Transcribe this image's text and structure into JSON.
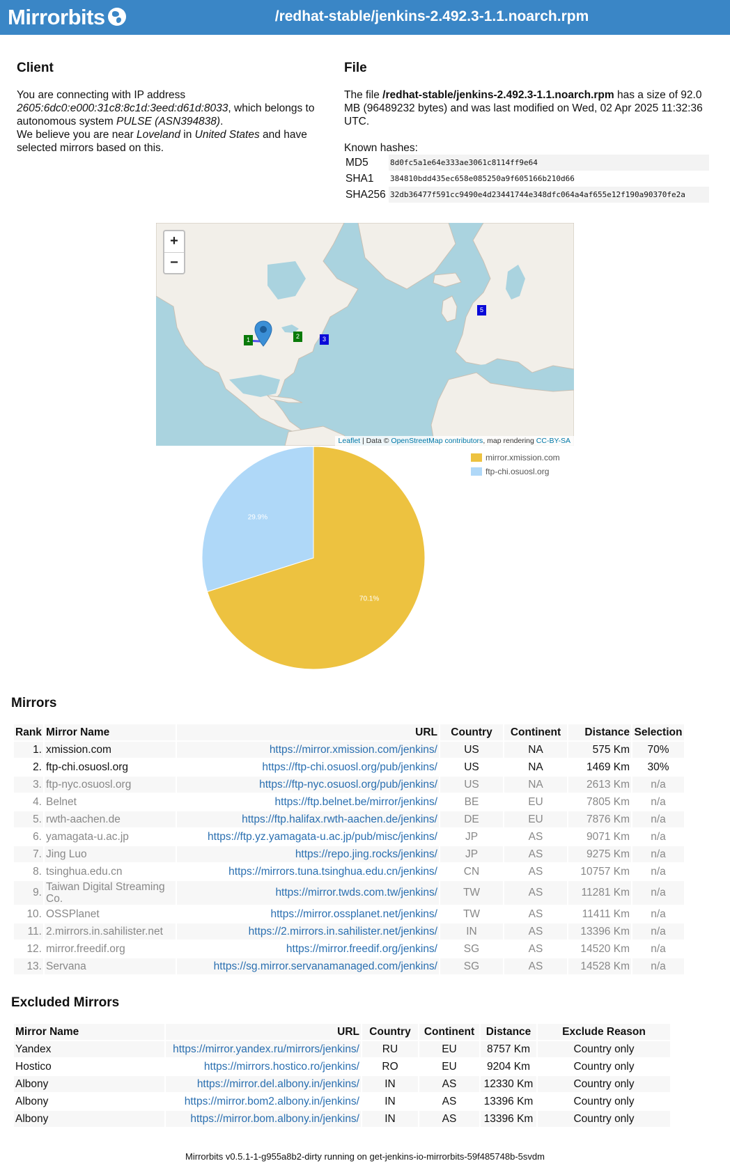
{
  "header": {
    "logo": "Mirrorbits",
    "path": "/redhat-stable/jenkins-2.492.3-1.1.noarch.rpm"
  },
  "client": {
    "title": "Client",
    "text_1": "You are connecting with IP address",
    "ip": "2605:6dc0:e000:31c8:8c1d:3eed:d61d:8033",
    "text_2": ", which belongs to autonomous system",
    "as_name": "PULSE (ASN394838)",
    "text_3": ".",
    "text_4": "We believe you are near",
    "city": "Loveland",
    "text_5": "in",
    "country": "United States",
    "text_6": "and have selected mirrors based on this."
  },
  "file": {
    "title": "File",
    "text_1": "The file",
    "path": "/redhat-stable/jenkins-2.492.3-1.1.noarch.rpm",
    "text_2": "has a size of 92.0 MB (96489232 bytes) and was last modified on Wed, 02 Apr 2025 11:32:36 UTC.",
    "hashes_label": "Known hashes:",
    "hashes": [
      {
        "name": "MD5",
        "value": "8d0fc5a1e64e333ae3061c8114ff9e64"
      },
      {
        "name": "SHA1",
        "value": "384810bdd435ec658e085250a9f605166b210d66"
      },
      {
        "name": "SHA256",
        "value": "32db36477f591cc9490e4d23441744e348dfc064a4af655e12f190a90370fe2a"
      }
    ]
  },
  "map": {
    "zoom_in": "+",
    "zoom_out": "−",
    "attribution_leaflet": "Leaflet",
    "attribution_data": "| Data ©",
    "attribution_osm": "OpenStreetMap contributors",
    "attribution_render": ", map rendering",
    "attribution_license": "CC-BY-SA",
    "markers": [
      "1",
      "2",
      "3",
      "5"
    ]
  },
  "chart_data": {
    "type": "pie",
    "labels": [
      "mirror.xmission.com",
      "ftp-chi.osuosl.org"
    ],
    "values": [
      70.1,
      29.9
    ],
    "value_labels": [
      "70.1%",
      "29.9%"
    ],
    "colors": [
      "#edc240",
      "#afd8f8"
    ],
    "legend": "top-right"
  },
  "mirrors": {
    "title": "Mirrors",
    "headers": [
      "Rank",
      "Mirror Name",
      "URL",
      "Country",
      "Continent",
      "Distance",
      "Selection"
    ],
    "rows": [
      {
        "rank": "1.",
        "name": "xmission.com",
        "url": "https://mirror.xmission.com/jenkins/",
        "country": "US",
        "continent": "NA",
        "distance": "575 Km",
        "selection": "70%"
      },
      {
        "rank": "2.",
        "name": "ftp-chi.osuosl.org",
        "url": "https://ftp-chi.osuosl.org/pub/jenkins/",
        "country": "US",
        "continent": "NA",
        "distance": "1469 Km",
        "selection": "30%"
      },
      {
        "rank": "3.",
        "name": "ftp-nyc.osuosl.org",
        "url": "https://ftp-nyc.osuosl.org/pub/jenkins/",
        "country": "US",
        "continent": "NA",
        "distance": "2613 Km",
        "selection": "n/a"
      },
      {
        "rank": "4.",
        "name": "Belnet",
        "url": "https://ftp.belnet.be/mirror/jenkins/",
        "country": "BE",
        "continent": "EU",
        "distance": "7805 Km",
        "selection": "n/a"
      },
      {
        "rank": "5.",
        "name": "rwth-aachen.de",
        "url": "https://ftp.halifax.rwth-aachen.de/jenkins/",
        "country": "DE",
        "continent": "EU",
        "distance": "7876 Km",
        "selection": "n/a"
      },
      {
        "rank": "6.",
        "name": "yamagata-u.ac.jp",
        "url": "https://ftp.yz.yamagata-u.ac.jp/pub/misc/jenkins/",
        "country": "JP",
        "continent": "AS",
        "distance": "9071 Km",
        "selection": "n/a"
      },
      {
        "rank": "7.",
        "name": "Jing Luo",
        "url": "https://repo.jing.rocks/jenkins/",
        "country": "JP",
        "continent": "AS",
        "distance": "9275 Km",
        "selection": "n/a"
      },
      {
        "rank": "8.",
        "name": "tsinghua.edu.cn",
        "url": "https://mirrors.tuna.tsinghua.edu.cn/jenkins/",
        "country": "CN",
        "continent": "AS",
        "distance": "10757 Km",
        "selection": "n/a"
      },
      {
        "rank": "9.",
        "name": "Taiwan Digital Streaming Co.",
        "url": "https://mirror.twds.com.tw/jenkins/",
        "country": "TW",
        "continent": "AS",
        "distance": "11281 Km",
        "selection": "n/a"
      },
      {
        "rank": "10.",
        "name": "OSSPlanet",
        "url": "https://mirror.ossplanet.net/jenkins/",
        "country": "TW",
        "continent": "AS",
        "distance": "11411 Km",
        "selection": "n/a"
      },
      {
        "rank": "11.",
        "name": "2.mirrors.in.sahilister.net",
        "url": "https://2.mirrors.in.sahilister.net/jenkins/",
        "country": "IN",
        "continent": "AS",
        "distance": "13396 Km",
        "selection": "n/a"
      },
      {
        "rank": "12.",
        "name": "mirror.freedif.org",
        "url": "https://mirror.freedif.org/jenkins/",
        "country": "SG",
        "continent": "AS",
        "distance": "14520 Km",
        "selection": "n/a"
      },
      {
        "rank": "13.",
        "name": "Servana",
        "url": "https://sg.mirror.servanamanaged.com/jenkins/",
        "country": "SG",
        "continent": "AS",
        "distance": "14528 Km",
        "selection": "n/a"
      }
    ]
  },
  "excluded": {
    "title": "Excluded Mirrors",
    "headers": [
      "Mirror Name",
      "URL",
      "Country",
      "Continent",
      "Distance",
      "Exclude Reason"
    ],
    "rows": [
      {
        "name": "Yandex",
        "url": "https://mirror.yandex.ru/mirrors/jenkins/",
        "country": "RU",
        "continent": "EU",
        "distance": "8757 Km",
        "reason": "Country only"
      },
      {
        "name": "Hostico",
        "url": "https://mirrors.hostico.ro/jenkins/",
        "country": "RO",
        "continent": "EU",
        "distance": "9204 Km",
        "reason": "Country only"
      },
      {
        "name": "Albony",
        "url": "https://mirror.del.albony.in/jenkins/",
        "country": "IN",
        "continent": "AS",
        "distance": "12330 Km",
        "reason": "Country only"
      },
      {
        "name": "Albony",
        "url": "https://mirror.bom2.albony.in/jenkins/",
        "country": "IN",
        "continent": "AS",
        "distance": "13396 Km",
        "reason": "Country only"
      },
      {
        "name": "Albony",
        "url": "https://mirror.bom.albony.in/jenkins/",
        "country": "IN",
        "continent": "AS",
        "distance": "13396 Km",
        "reason": "Country only"
      }
    ]
  },
  "footer": {
    "text": "Mirrorbits v0.5.1-1-g955a8b2-dirty running on get-jenkins-io-mirrorbits-59f485748b-5svdm"
  }
}
